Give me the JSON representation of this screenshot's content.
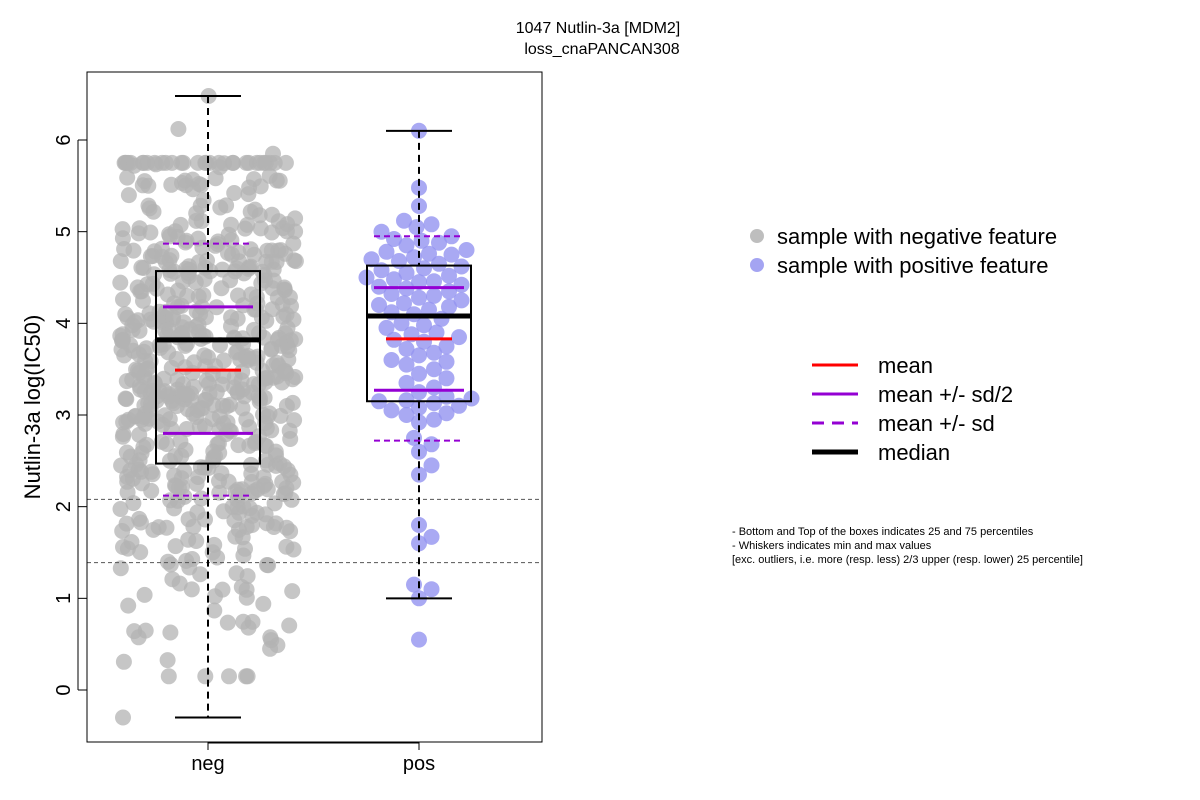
{
  "chart_data": {
    "type": "box",
    "title_lines": [
      "1047 Nutlin-3a [MDM2]",
      "loss_cnaPANCAN308"
    ],
    "xlabel": "",
    "ylabel": "Nutlin-3a log(IC50)",
    "categories": [
      "neg",
      "pos"
    ],
    "y_ticks": [
      0,
      1,
      2,
      3,
      4,
      5,
      6
    ],
    "ylim": [
      -0.5,
      6.8
    ],
    "grid": false,
    "reference_lines": [
      2.08,
      1.39
    ],
    "groups": [
      {
        "name": "neg",
        "color": "#b3b3b3",
        "whisker_min": -0.3,
        "q1": 2.47,
        "median": 3.82,
        "q3": 4.57,
        "whisker_max": 6.48,
        "mean": 3.49,
        "mean_minus_half_sd": 2.8,
        "mean_plus_half_sd": 4.18,
        "mean_minus_sd": 2.12,
        "mean_plus_sd": 4.87,
        "n_points": 620
      },
      {
        "name": "pos",
        "color": "#9494f0",
        "whisker_min": 1.0,
        "q1": 3.15,
        "median": 4.08,
        "q3": 4.63,
        "whisker_max": 6.1,
        "mean": 3.83,
        "mean_minus_half_sd": 3.27,
        "mean_plus_half_sd": 4.39,
        "mean_minus_sd": 2.72,
        "mean_plus_sd": 4.95,
        "points": [
          6.1,
          5.48,
          5.28,
          5.12,
          5.08,
          5.05,
          5.0,
          4.95,
          4.92,
          4.9,
          4.88,
          4.85,
          4.8,
          4.78,
          4.76,
          4.75,
          4.72,
          4.7,
          4.68,
          4.65,
          4.62,
          4.6,
          4.58,
          4.55,
          4.52,
          4.5,
          4.48,
          4.46,
          4.45,
          4.42,
          4.4,
          4.38,
          4.35,
          4.32,
          4.3,
          4.28,
          4.25,
          4.22,
          4.2,
          4.18,
          4.15,
          4.12,
          4.1,
          4.05,
          4.0,
          3.98,
          3.95,
          3.9,
          3.88,
          3.85,
          3.82,
          3.8,
          3.75,
          3.72,
          3.68,
          3.65,
          3.6,
          3.58,
          3.55,
          3.5,
          3.45,
          3.4,
          3.35,
          3.3,
          3.25,
          3.2,
          3.18,
          3.16,
          3.15,
          3.13,
          3.1,
          3.08,
          3.05,
          3.02,
          3.0,
          2.95,
          2.92,
          2.75,
          2.68,
          2.6,
          2.45,
          2.35,
          1.8,
          1.67,
          1.6,
          1.15,
          1.1,
          1.0,
          0.55
        ]
      }
    ],
    "legend_points": [
      {
        "label": "sample with negative feature",
        "color": "#b3b3b3"
      },
      {
        "label": "sample with positive feature",
        "color": "#9494f0"
      }
    ],
    "legend_lines": [
      {
        "label": "mean",
        "color": "#ff0000",
        "style": "solid"
      },
      {
        "label": "mean +/- sd/2",
        "color": "#9400d3",
        "style": "solid"
      },
      {
        "label": "mean +/- sd",
        "color": "#9400d3",
        "style": "dashed"
      },
      {
        "label": "median",
        "color": "#000000",
        "style": "solid-thick"
      }
    ],
    "notes": [
      "- Bottom and Top of the boxes indicates 25 and 75 percentiles",
      "- Whiskers indicates min and max values",
      "[exc. outliers, i.e. more (resp. less) 2/3 upper (resp. lower) 25 percentile]"
    ]
  }
}
